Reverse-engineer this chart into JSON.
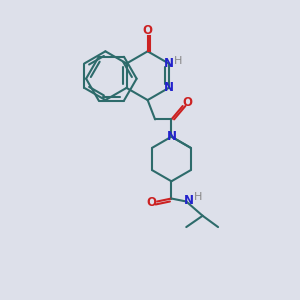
{
  "bg_color": "#dde0ea",
  "bond_color": "#2d6b6b",
  "N_color": "#2222cc",
  "O_color": "#cc2222",
  "H_color": "#888888",
  "line_width": 1.5,
  "font_size": 8.5,
  "xlim": [
    0,
    10
  ],
  "ylim": [
    0,
    10
  ]
}
